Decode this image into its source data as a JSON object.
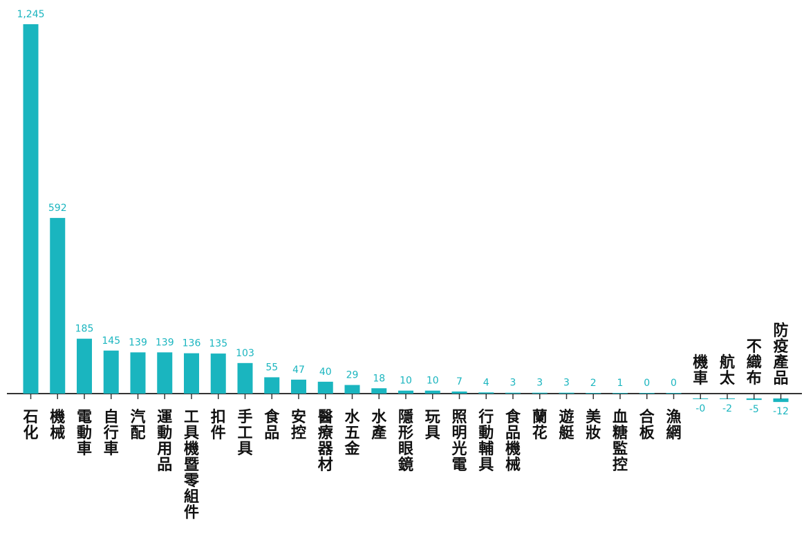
{
  "colors": {
    "bar": "#1ab5bf",
    "label": "#1ab5bf",
    "axis": "#333333",
    "category": "#111111"
  },
  "chart_data": {
    "type": "bar",
    "title": "",
    "xlabel": "",
    "ylabel": "",
    "categories": [
      "石化",
      "機械",
      "電動車",
      "自行車",
      "汽配",
      "運動用品",
      "工具機暨零組件",
      "扣件",
      "手工具",
      "食品",
      "安控",
      "醫療器材",
      "水五金",
      "水產",
      "隱形眼鏡",
      "玩具",
      "照明光電",
      "行動輔具",
      "食品機械",
      "蘭花",
      "遊艇",
      "美妝",
      "血糖監控",
      "合板",
      "漁網",
      "機車",
      "航太",
      "不織布",
      "防疫產品"
    ],
    "values": [
      1245,
      592,
      185,
      145,
      139,
      139,
      136,
      135,
      103,
      55,
      47,
      40,
      29,
      18,
      10,
      10,
      7,
      4,
      3,
      3,
      3,
      2,
      1,
      0,
      0,
      -0.3,
      -2,
      -5,
      -12
    ],
    "value_labels": [
      "1,245",
      "592",
      "185",
      "145",
      "139",
      "139",
      "136",
      "135",
      "103",
      "55",
      "47",
      "40",
      "29",
      "18",
      "10",
      "10",
      "7",
      "4",
      "3",
      "3",
      "3",
      "2",
      "1",
      "0",
      "0",
      "-0",
      "-2",
      "-5",
      "-12"
    ],
    "ylim": [
      -15,
      1245
    ],
    "grid": false,
    "legend": "none"
  }
}
